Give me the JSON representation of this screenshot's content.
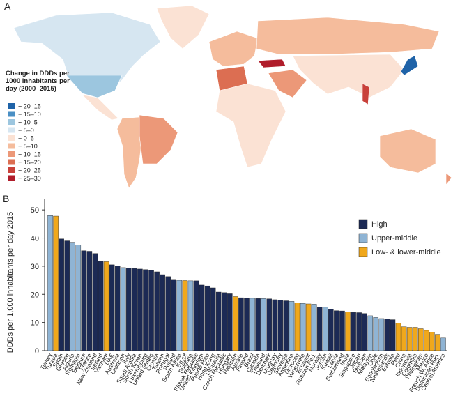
{
  "panel_a": {
    "label": "A",
    "legend_title": [
      "Change in DDDs per",
      "1000 inhabitants per",
      "day (2000–2015)"
    ],
    "legend": [
      {
        "label": "− 20–15",
        "color": "#1f63a8"
      },
      {
        "label": "− 15–10",
        "color": "#4a8fc4"
      },
      {
        "label": "− 10–5",
        "color": "#9cc6df"
      },
      {
        "label": "− 5–0",
        "color": "#d6e6f1"
      },
      {
        "label": "+ 0–5",
        "color": "#fbe2d4"
      },
      {
        "label": "+ 5–10",
        "color": "#f5bc9c"
      },
      {
        "label": "+ 10–15",
        "color": "#ec9878"
      },
      {
        "label": "+ 15–20",
        "color": "#dc6e52"
      },
      {
        "label": "+ 20–25",
        "color": "#c9413a"
      },
      {
        "label": "+ 25–30",
        "color": "#b01c2a"
      }
    ]
  },
  "chart_data": {
    "type": "bar",
    "label": "B",
    "ylabel": "DDDs per 1,000 inhabitants  per day 2015",
    "categories": [
      "Turkey",
      "Tunisia",
      "Spain",
      "Greece",
      "Algeria",
      "Romania",
      "Belgium",
      "France",
      "New Zealand",
      "Ireland",
      "Vietnam",
      "UAE",
      "Australia",
      "Lebanon",
      "Italy",
      "Saudi Arabia",
      "South Korea",
      "Luxembourg",
      "United States",
      "Croatia",
      "Taiwan",
      "Portugal",
      "Poland",
      "South Africa",
      "Egypt",
      "Bulgaria",
      "Slovak Republic",
      "United Kingdom",
      "Puerto Rico",
      "Hong Kong",
      "Lithuania",
      "Czech Republic",
      "Hungary",
      "Pakistan",
      "Austria",
      "Finland",
      "Brazil",
      "Canada",
      "Thailand",
      "Denmark",
      "Uruguay",
      "Germany",
      "Slovenia",
      "Argentina",
      "Morocco",
      "Venezuela",
      "Ecuador",
      "Russian Fed.",
      "Norway",
      "Jordan",
      "Kuwait",
      "Latvia",
      "Switzerland",
      "India",
      "Singapore",
      "Japan",
      "Sweden",
      "Malaysia",
      "Chile",
      "Bangladesh",
      "Netherlands",
      "Estonia",
      "Peru",
      "China",
      "Indonesia",
      "Colombia",
      "Philippines",
      "Mexico",
      "French W. Africa",
      "Dominican Rep.",
      "Central America"
    ],
    "values": [
      48,
      47.8,
      39.7,
      39,
      38.5,
      37.5,
      35.5,
      35.3,
      34.5,
      31.7,
      31.6,
      30.5,
      30.1,
      29.5,
      29.3,
      29.2,
      29,
      28.8,
      28.5,
      28,
      27,
      26.3,
      25.3,
      25,
      24.9,
      24.8,
      24.8,
      23.3,
      23,
      22.3,
      20.8,
      20.6,
      20.2,
      19.2,
      18.8,
      18.6,
      18.6,
      18.5,
      18.5,
      18.4,
      18.1,
      18,
      17.7,
      17.5,
      17,
      16.8,
      16.6,
      16.5,
      15.5,
      15.4,
      14.8,
      14.2,
      14.1,
      13.8,
      13.6,
      13.5,
      13.2,
      12.4,
      11.8,
      11.4,
      11.2,
      11,
      9.8,
      8.5,
      8.3,
      8.3,
      7.8,
      7.2,
      6.5,
      5.8,
      4.5
    ],
    "colors": [
      "#8fb4d4",
      "#f0a81c",
      "#1c2a55",
      "#1c2a55",
      "#8fb4d4",
      "#8fb4d4",
      "#1c2a55",
      "#1c2a55",
      "#1c2a55",
      "#1c2a55",
      "#f0a81c",
      "#1c2a55",
      "#1c2a55",
      "#8fb4d4",
      "#1c2a55",
      "#1c2a55",
      "#1c2a55",
      "#1c2a55",
      "#1c2a55",
      "#1c2a55",
      "#1c2a55",
      "#1c2a55",
      "#1c2a55",
      "#8fb4d4",
      "#f0a81c",
      "#8fb4d4",
      "#1c2a55",
      "#1c2a55",
      "#1c2a55",
      "#1c2a55",
      "#1c2a55",
      "#1c2a55",
      "#1c2a55",
      "#f0a81c",
      "#1c2a55",
      "#1c2a55",
      "#8fb4d4",
      "#1c2a55",
      "#8fb4d4",
      "#1c2a55",
      "#1c2a55",
      "#1c2a55",
      "#1c2a55",
      "#8fb4d4",
      "#f0a81c",
      "#8fb4d4",
      "#f0a81c",
      "#8fb4d4",
      "#1c2a55",
      "#8fb4d4",
      "#1c2a55",
      "#1c2a55",
      "#1c2a55",
      "#f0a81c",
      "#1c2a55",
      "#1c2a55",
      "#1c2a55",
      "#8fb4d4",
      "#8fb4d4",
      "#8fb4d4",
      "#1c2a55",
      "#1c2a55",
      "#f0a81c",
      "#f0a81c",
      "#f0a81c",
      "#f0a81c",
      "#f0a81c",
      "#f0a81c",
      "#f0a81c",
      "#f0a81c",
      "#8fb4d4"
    ],
    "legend": [
      {
        "name": "High",
        "color": "#1c2a55"
      },
      {
        "name": "Upper-middle",
        "color": "#8fb4d4"
      },
      {
        "name": "Low- & lower-middle",
        "color": "#f0a81c"
      }
    ],
    "ylim": [
      0,
      54
    ],
    "yticks": [
      0,
      10,
      20,
      30,
      40,
      50
    ]
  }
}
